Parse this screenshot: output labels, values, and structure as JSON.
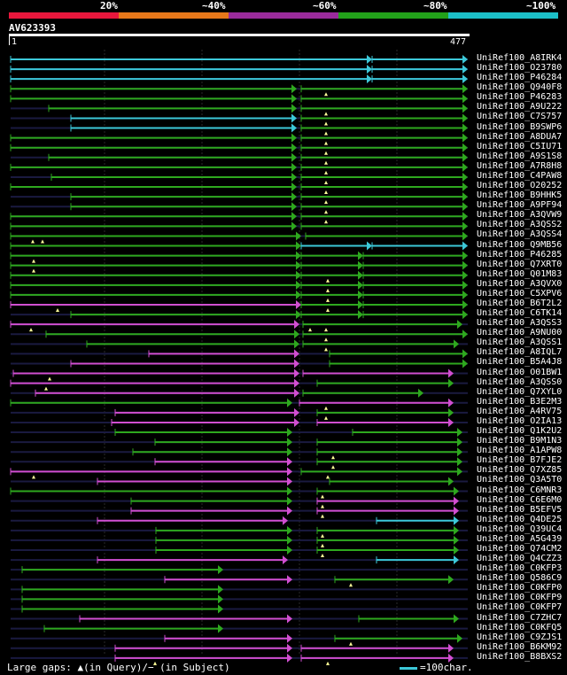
{
  "query": {
    "id": "AV623393",
    "length": 477,
    "tick_start": "1",
    "tick_end": "477"
  },
  "identity_legend": {
    "labels": [
      "20%",
      "~40%",
      "~60%",
      "~80%",
      "~100%"
    ],
    "colors": [
      "#e8173c",
      "#e8781a",
      "#9a2b9b",
      "#22a11a",
      "#1cc0c8"
    ]
  },
  "colors": {
    "magenta": "#d14ed1",
    "green": "#2ea81e",
    "cyan": "#3cc8d8",
    "gap": "#1a1a40",
    "grid": "#2a2a2a"
  },
  "hits": [
    "UniRef100_A8IRK4",
    "UniRef100_O23780",
    "UniRef100_P46284",
    "UniRef100_Q940F8",
    "UniRef100_P46283",
    "UniRef100_A9U222",
    "UniRef100_C7S757",
    "UniRef100_B9SWP6",
    "UniRef100_A8DUA7",
    "UniRef100_C5IU71",
    "UniRef100_A9S1S8",
    "UniRef100_A7R8H8",
    "UniRef100_C4PAW8",
    "UniRef100_O20252",
    "UniRef100_B9HHK5",
    "UniRef100_A9PF94",
    "UniRef100_A3QVW9",
    "UniRef100_A3QSS2",
    "UniRef100_A3QSS4",
    "UniRef100_Q9MB56",
    "UniRef100_P46285",
    "UniRef100_Q7XRT0",
    "UniRef100_Q01M83",
    "UniRef100_A3QVX0",
    "UniRef100_C5XPV6",
    "UniRef100_B6T2L2",
    "UniRef100_C6TK14",
    "UniRef100_A3QSS3",
    "UniRef100_A9NU00",
    "UniRef100_A3QSS1",
    "UniRef100_A8IQL7",
    "UniRef100_B5A4J8",
    "UniRef100_O01BW1",
    "UniRef100_A3QSS0",
    "UniRef100_Q7XYL0",
    "UniRef100_B3E2M3",
    "UniRef100_A4RV75",
    "UniRef100_O2IA13",
    "UniRef100_Q1K2U2",
    "UniRef100_B9M1N3",
    "UniRef100_A1APW8",
    "UniRef100_B7FJE2",
    "UniRef100_Q7XZ85",
    "UniRef100_Q3A5T0",
    "UniRef100_C6MNR3",
    "UniRef100_C6E6M0",
    "UniRef100_B5EFV5",
    "UniRef100_Q4DE25",
    "UniRef100_Q39UC4",
    "UniRef100_A5G439",
    "UniRef100_Q74CM2",
    "UniRef100_Q4CZZ3",
    "UniRef100_C0KFP3",
    "UniRef100_Q586C9",
    "UniRef100_C0KFP0",
    "UniRef100_C0KFP9",
    "UniRef100_C0KFP7",
    "UniRef100_C7ZHC7",
    "UniRef100_C0KFQ5",
    "UniRef100_C9ZJS1",
    "UniRef100_B6KM92",
    "UniRef100_B8BXS2"
  ],
  "footer": {
    "gaps_text": "Large gaps: ▲(in Query)/− (in Subject)",
    "scale_text": "=100char."
  }
}
